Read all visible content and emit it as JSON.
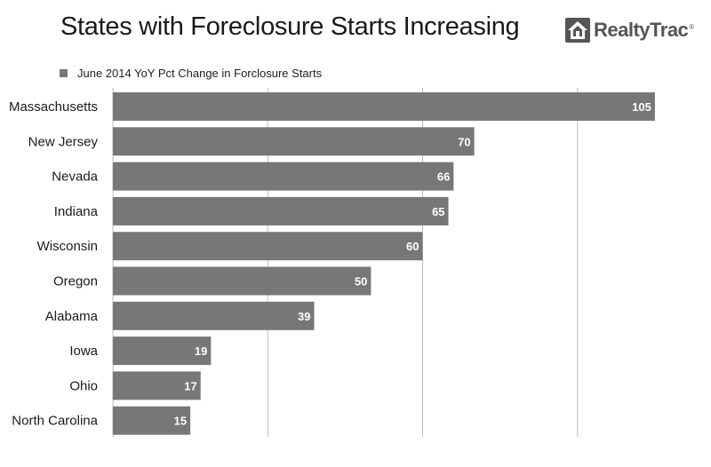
{
  "chart_data": {
    "type": "bar",
    "orientation": "horizontal",
    "title": "States with Foreclosure Starts Increasing",
    "series": [
      {
        "name": "June 2014 YoY Pct Change in Forclosure Starts",
        "values": [
          105,
          70,
          66,
          65,
          60,
          50,
          39,
          19,
          17,
          15
        ]
      }
    ],
    "categories": [
      "Massachusetts",
      "New Jersey",
      "Nevada",
      "Indiana",
      "Wisconsin",
      "Oregon",
      "Alabama",
      "Iowa",
      "Ohio",
      "North Carolina"
    ],
    "xlim": [
      0,
      120
    ],
    "x_gridlines": [
      30,
      60,
      90
    ],
    "grid": true,
    "legend_position": "top-left",
    "bar_color": "#777777",
    "gridline_color": "#bbbbbb"
  },
  "logo": {
    "text": "RealtyTrac",
    "mark": "®",
    "icon": "house-icon"
  }
}
